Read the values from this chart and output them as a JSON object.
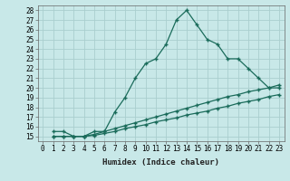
{
  "bg_color": "#c8e8e8",
  "line_color": "#1a6b5a",
  "grid_color": "#b0d8d8",
  "title": "",
  "xlabel": "Humidex (Indice chaleur)",
  "ylabel": "",
  "xlim": [
    -0.5,
    23.5
  ],
  "ylim": [
    14.5,
    28.5
  ],
  "yticks": [
    15,
    16,
    17,
    18,
    19,
    20,
    21,
    22,
    23,
    24,
    25,
    26,
    27,
    28
  ],
  "xticks": [
    0,
    1,
    2,
    3,
    4,
    5,
    6,
    7,
    8,
    9,
    10,
    11,
    12,
    13,
    14,
    15,
    16,
    17,
    18,
    19,
    20,
    21,
    22,
    23
  ],
  "main_x": [
    1,
    2,
    3,
    4,
    5,
    6,
    7,
    8,
    9,
    10,
    11,
    12,
    13,
    14,
    15,
    16,
    17,
    18,
    19,
    20,
    21,
    22,
    23
  ],
  "main_y": [
    15.5,
    15.5,
    15.0,
    15.0,
    15.5,
    15.5,
    17.5,
    19.0,
    21.0,
    22.5,
    23.0,
    24.5,
    27.0,
    28.0,
    26.5,
    25.0,
    24.5,
    23.0,
    23.0,
    22.0,
    21.0,
    20.0,
    20.0
  ],
  "line2_x": [
    1,
    2,
    3,
    4,
    5,
    6,
    7,
    8,
    9,
    10,
    11,
    12,
    13,
    14,
    15,
    16,
    17,
    18,
    19,
    20,
    21,
    22,
    23
  ],
  "line2_y": [
    15.0,
    15.0,
    15.0,
    15.0,
    15.2,
    15.5,
    15.8,
    16.1,
    16.4,
    16.7,
    17.0,
    17.3,
    17.6,
    17.9,
    18.2,
    18.5,
    18.8,
    19.1,
    19.3,
    19.6,
    19.8,
    20.0,
    20.3
  ],
  "line3_x": [
    1,
    2,
    3,
    4,
    5,
    6,
    7,
    8,
    9,
    10,
    11,
    12,
    13,
    14,
    15,
    16,
    17,
    18,
    19,
    20,
    21,
    22,
    23
  ],
  "line3_y": [
    15.0,
    15.0,
    15.0,
    15.0,
    15.1,
    15.3,
    15.5,
    15.8,
    16.0,
    16.2,
    16.5,
    16.7,
    16.9,
    17.2,
    17.4,
    17.6,
    17.9,
    18.1,
    18.4,
    18.6,
    18.8,
    19.1,
    19.3
  ],
  "marker": "+",
  "markersize": 3.5,
  "linewidth": 0.9,
  "xlabel_fontsize": 6.5,
  "tick_fontsize": 5.5
}
